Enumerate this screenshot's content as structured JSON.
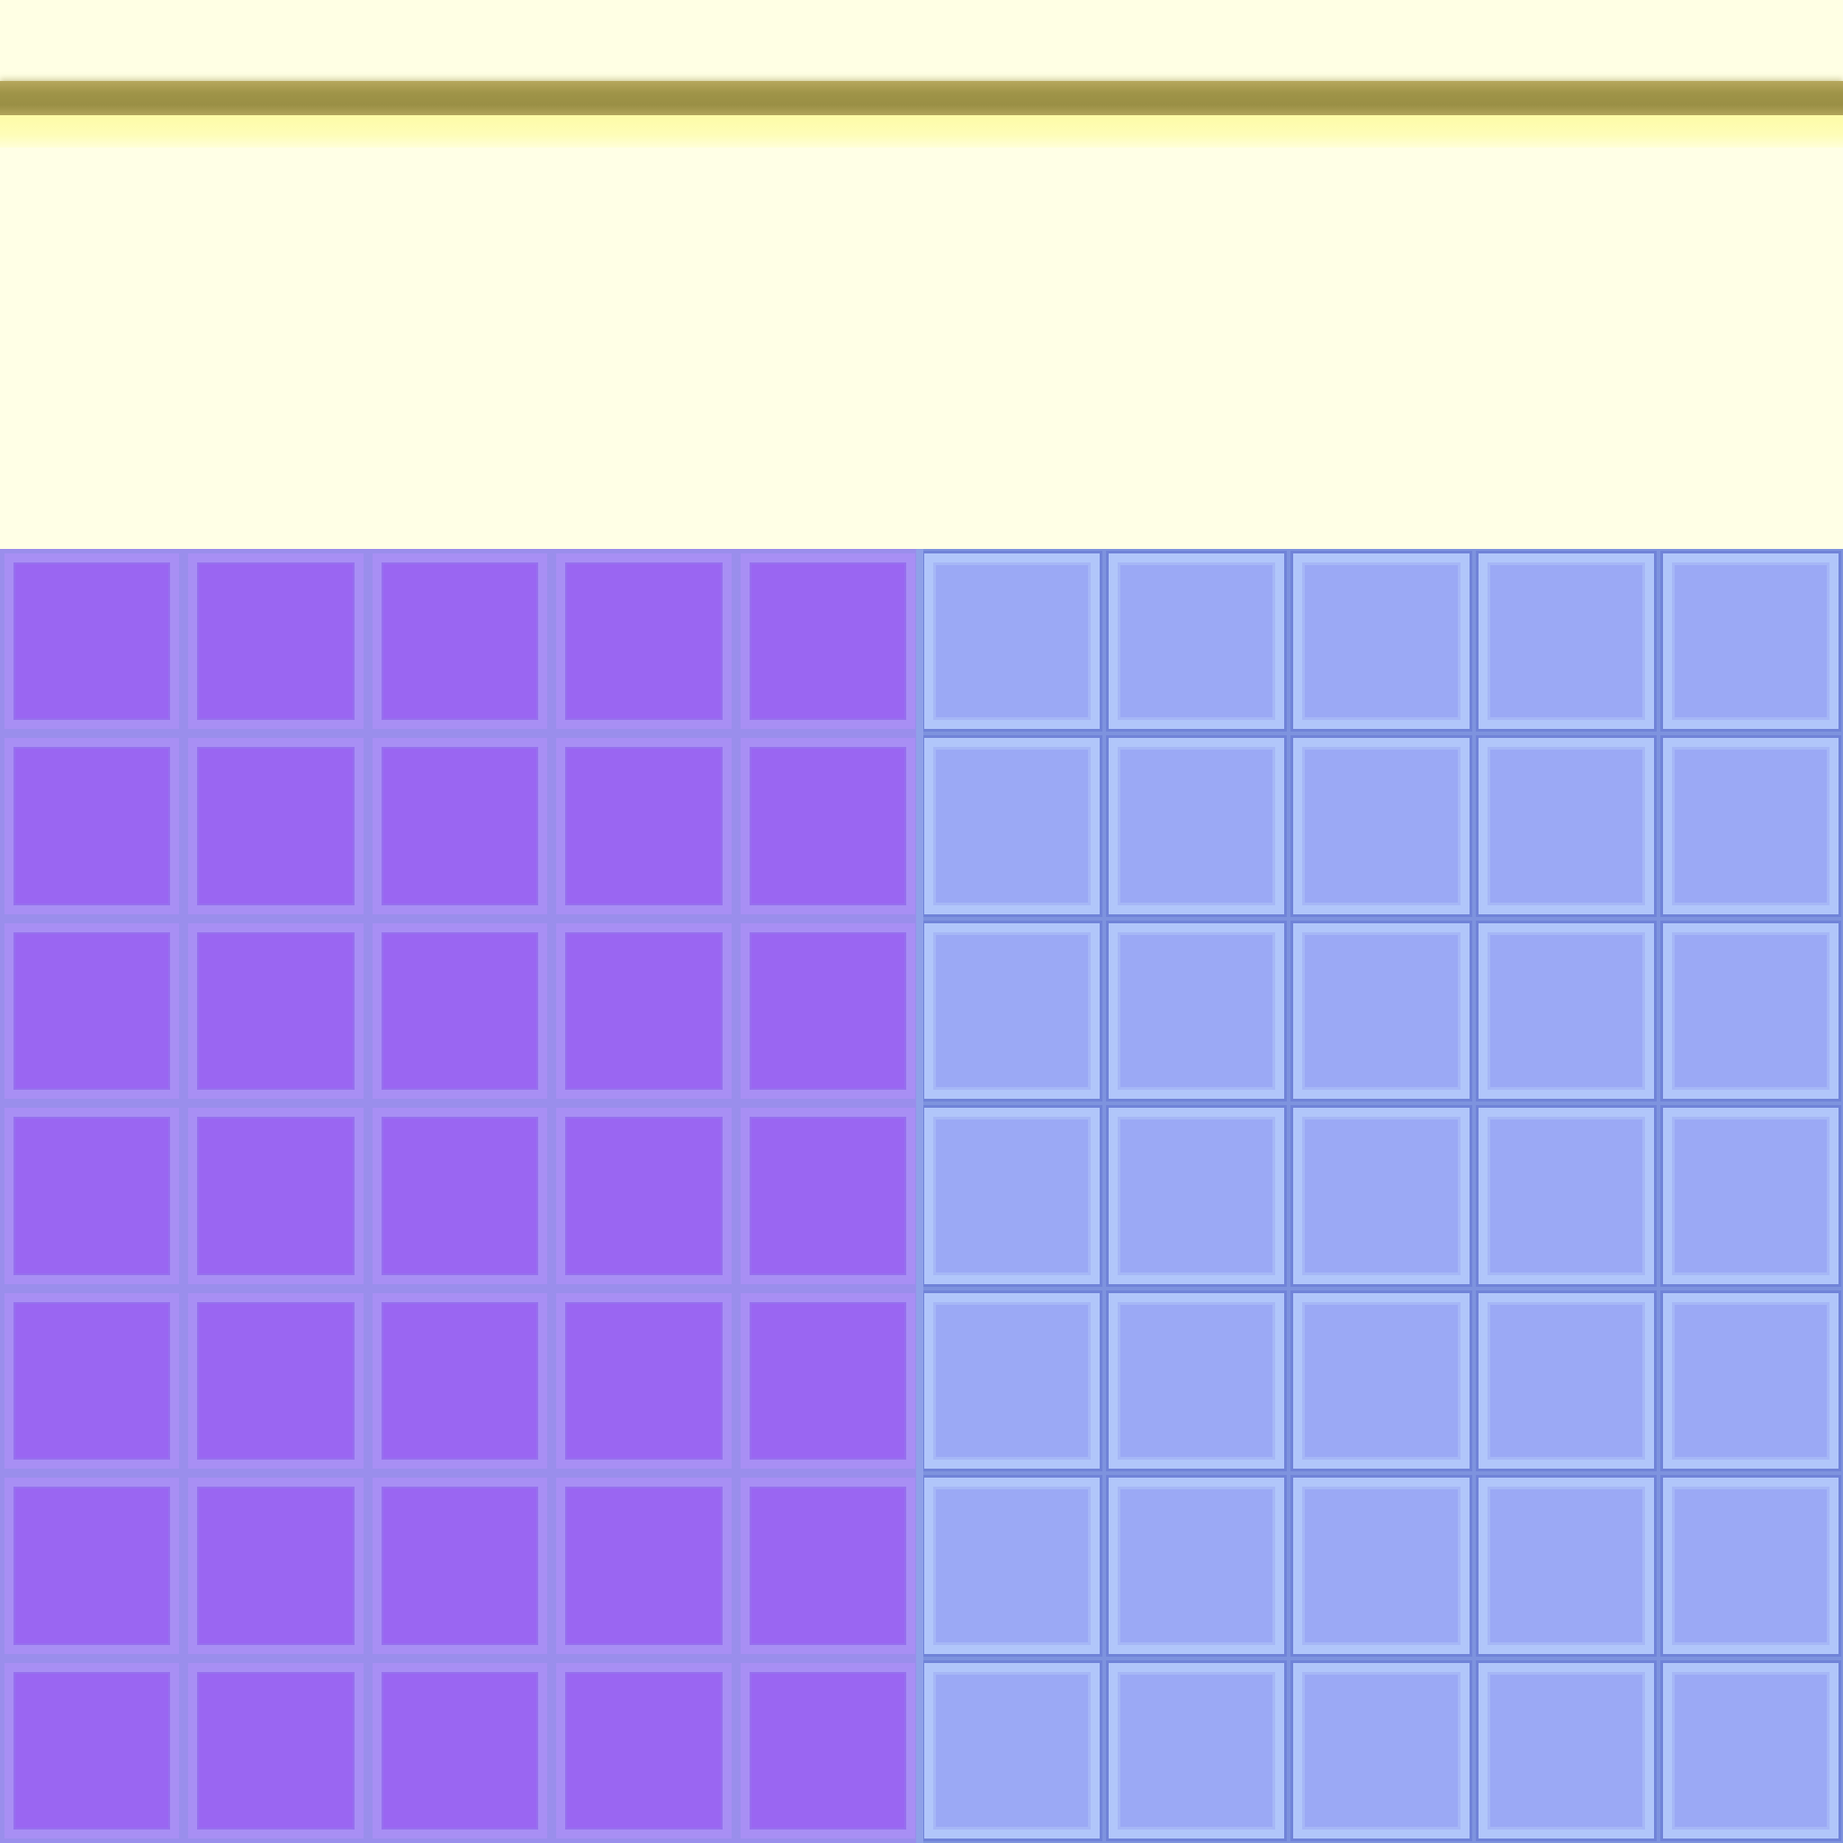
{
  "scene": {
    "background_color": "#FFFFE6",
    "shelf_color": "#9F9448",
    "shelf_highlight_color": "#FEFDB8"
  },
  "grid": {
    "rows": 7,
    "columns": 10,
    "left_block": {
      "columns": 5,
      "tile_state": "purple",
      "tile_color": "#9A66F2",
      "tile_border_color": "#A88FF4"
    },
    "right_block": {
      "columns": 5,
      "tile_state": "blue",
      "tile_color": "#9BA9F5",
      "tile_border_color": "#B1C6FA"
    }
  }
}
